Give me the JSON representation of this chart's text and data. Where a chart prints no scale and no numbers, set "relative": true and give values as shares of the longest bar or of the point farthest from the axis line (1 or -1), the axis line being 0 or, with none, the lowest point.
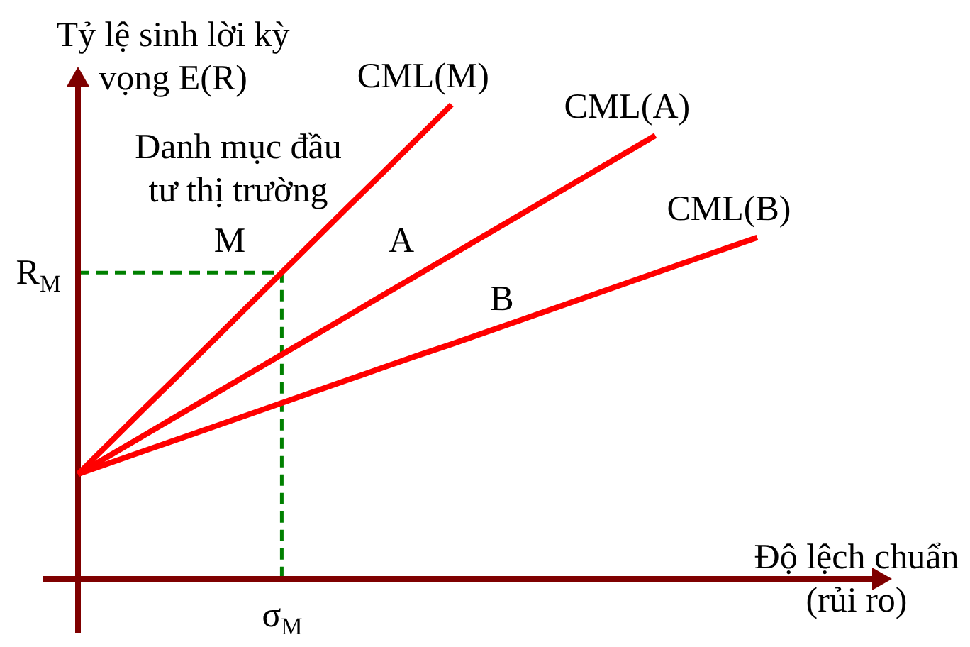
{
  "chart_data": {
    "type": "line",
    "relative": true,
    "xlabel": "Độ lệch chuẩn (rủi ro)",
    "ylabel": "Tỷ lệ sinh lời kỳ vọng E(R)",
    "categories": [
      null,
      null,
      null,
      null,
      null,
      null,
      null,
      null,
      null,
      null,
      null,
      null,
      null,
      null,
      null,
      null,
      null,
      null,
      null,
      null,
      null
    ],
    "series": [
      {
        "name": "CML(M)",
        "color": "#ff0000",
        "values": [
          0.221,
          0.292,
          0.363,
          0.433,
          0.504,
          0.575,
          0.646,
          0.717,
          0.788,
          0.858,
          0.929,
          1,
          null,
          null,
          null,
          null,
          null,
          null,
          null,
          null,
          null
        ]
      },
      {
        "name": "CML(A)",
        "color": "#ff0000",
        "values": [
          0.221,
          0.263,
          0.305,
          0.347,
          0.389,
          0.431,
          0.473,
          0.515,
          0.557,
          0.599,
          0.641,
          0.683,
          0.725,
          0.767,
          0.809,
          0.851,
          0.893,
          0.935,
          null,
          null,
          null
        ]
      },
      {
        "name": "CML(B)",
        "color": "#ff0000",
        "values": [
          0.221,
          0.246,
          0.271,
          0.296,
          0.321,
          0.346,
          0.371,
          0.396,
          0.421,
          0.446,
          0.471,
          0.495,
          0.52,
          0.545,
          0.57,
          0.595,
          0.62,
          0.645,
          0.67,
          0.695,
          0.72
        ]
      }
    ],
    "ref_lines": [
      {
        "axis": "y",
        "value": 0.646,
        "label": "R$_{M}$",
        "color": "#008000",
        "line_style": "dashed"
      }
    ],
    "annotations": [
      "Danh mục đầu tư thị trường",
      "M",
      "A",
      "B",
      "σ$_{M}$"
    ]
  }
}
